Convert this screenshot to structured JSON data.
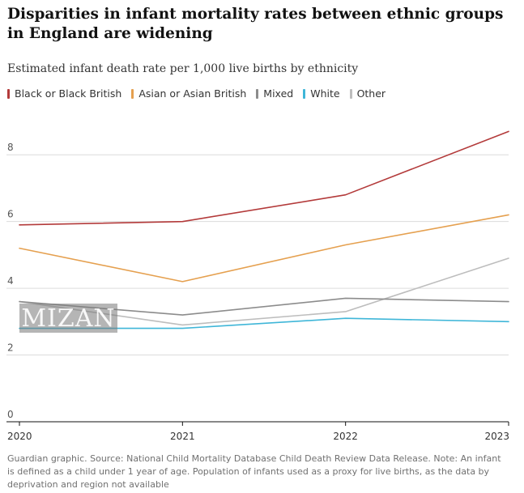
{
  "title": "Disparities in infant mortality rates between ethnic groups in England are widening",
  "subtitle": "Estimated infant death rate per 1,000 live births by ethnicity",
  "footer": "Guardian graphic. Source: National Child Mortality Database Child Death Review Data Release. Note: An infant is defined as a child under 1 year of age. Population of infants used as a proxy for live births, as the data by deprivation and region not available",
  "watermark": "MIZAN",
  "chart_data": {
    "type": "line",
    "title": "Disparities in infant mortality rates between ethnic groups in England are widening",
    "subtitle": "Estimated infant death rate per 1,000 live births by ethnicity",
    "xlabel": "",
    "ylabel": "",
    "x": [
      "2020",
      "2021",
      "2022",
      "2023"
    ],
    "ylim": [
      0,
      9
    ],
    "yticks": [
      0,
      2,
      4,
      6,
      8
    ],
    "grid": true,
    "legend_position": "top-left",
    "series": [
      {
        "name": "Black or Black British",
        "color": "#b33a3a",
        "values": [
          5.9,
          6.0,
          6.8,
          8.7
        ]
      },
      {
        "name": "Asian or Asian British",
        "color": "#e5a04f",
        "values": [
          5.2,
          4.2,
          5.3,
          6.2
        ]
      },
      {
        "name": "Mixed",
        "color": "#8c8c8c",
        "values": [
          3.6,
          3.2,
          3.7,
          3.6
        ]
      },
      {
        "name": "White",
        "color": "#3fb6d8",
        "values": [
          2.8,
          2.8,
          3.1,
          3.0
        ]
      },
      {
        "name": "Other",
        "color": "#bdbdbd",
        "values": [
          3.6,
          2.9,
          3.3,
          4.9
        ]
      }
    ]
  }
}
